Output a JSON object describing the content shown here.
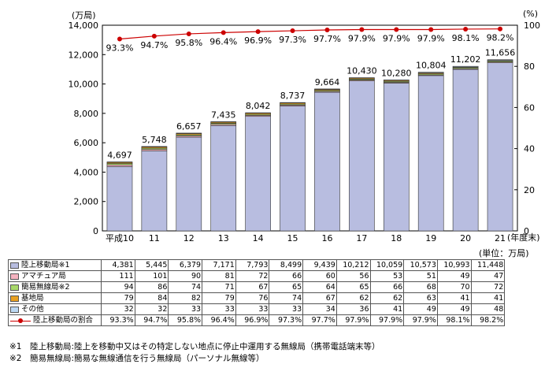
{
  "chart_data": {
    "type": "bar",
    "stacked": true,
    "categories": [
      "平成10",
      "11",
      "12",
      "13",
      "14",
      "15",
      "16",
      "17",
      "18",
      "19",
      "20",
      "21"
    ],
    "x_unit_label": "(年度末)",
    "left_axis": {
      "unit_label": "(万局)",
      "range": [
        0,
        14000
      ],
      "ticks": [
        "0",
        "2,000",
        "4,000",
        "6,000",
        "8,000",
        "10,000",
        "12,000",
        "14,000"
      ]
    },
    "right_axis": {
      "unit_label": "(%)",
      "range": [
        0,
        100
      ],
      "ticks": [
        "0",
        "20",
        "40",
        "60",
        "80",
        "100"
      ]
    },
    "series": [
      {
        "name": "陸上移動局※1",
        "color": "#b8bde0",
        "values": [
          4381,
          5445,
          6379,
          7171,
          7793,
          8499,
          9439,
          10212,
          10059,
          10573,
          10993,
          11448
        ]
      },
      {
        "name": "アマチュア局",
        "color": "#f5b3c0",
        "values": [
          111,
          101,
          90,
          81,
          72,
          66,
          60,
          56,
          53,
          51,
          49,
          47
        ]
      },
      {
        "name": "簡易無線局※2",
        "color": "#a8d86a",
        "values": [
          94,
          86,
          74,
          71,
          67,
          65,
          64,
          65,
          66,
          68,
          70,
          72
        ]
      },
      {
        "name": "基地局",
        "color": "#e8a020",
        "values": [
          79,
          84,
          82,
          79,
          76,
          74,
          67,
          62,
          62,
          63,
          41,
          41
        ]
      },
      {
        "name": "その他",
        "color": "#bcd8f2",
        "values": [
          32,
          32,
          33,
          33,
          33,
          33,
          34,
          36,
          41,
          49,
          49,
          48
        ]
      }
    ],
    "totals": [
      "4,697",
      "5,748",
      "6,657",
      "7,435",
      "8,042",
      "8,737",
      "9,664",
      "10,430",
      "10,280",
      "10,804",
      "11,202",
      "11,656"
    ],
    "line_series": {
      "name": "陸上移動局の割合",
      "color": "#cc0000",
      "axis": "right",
      "values": [
        93.3,
        94.7,
        95.8,
        96.4,
        96.9,
        97.3,
        97.7,
        97.9,
        97.9,
        97.9,
        98.1,
        98.2
      ]
    },
    "line_labels": [
      "93.3%",
      "94.7%",
      "95.8%",
      "96.4%",
      "96.9%",
      "97.3%",
      "97.7%",
      "97.9%",
      "97.9%",
      "97.9%",
      "98.1%",
      "98.2%"
    ]
  },
  "table": {
    "unit_note": "(単位：万局)",
    "rows": [
      {
        "label": "陸上移動局※1",
        "swatch": "#b8bde0",
        "cells": [
          "4,381",
          "5,445",
          "6,379",
          "7,171",
          "7,793",
          "8,499",
          "9,439",
          "10,212",
          "10,059",
          "10,573",
          "10,993",
          "11,448"
        ]
      },
      {
        "label": "アマチュア局",
        "swatch": "#f5b3c0",
        "cells": [
          "111",
          "101",
          "90",
          "81",
          "72",
          "66",
          "60",
          "56",
          "53",
          "51",
          "49",
          "47"
        ]
      },
      {
        "label": "簡易無線局※2",
        "swatch": "#a8d86a",
        "cells": [
          "94",
          "86",
          "74",
          "71",
          "67",
          "65",
          "64",
          "65",
          "66",
          "68",
          "70",
          "72"
        ]
      },
      {
        "label": "基地局",
        "swatch": "#e8a020",
        "cells": [
          "79",
          "84",
          "82",
          "79",
          "76",
          "74",
          "67",
          "62",
          "62",
          "63",
          "41",
          "41"
        ]
      },
      {
        "label": "その他",
        "swatch": "#bcd8f2",
        "cells": [
          "32",
          "32",
          "33",
          "33",
          "33",
          "33",
          "34",
          "36",
          "41",
          "49",
          "49",
          "48"
        ]
      },
      {
        "label": "陸上移動局の割合",
        "swatch": "line",
        "cells": [
          "93.3%",
          "94.7%",
          "95.8%",
          "96.4%",
          "96.9%",
          "97.3%",
          "97.7%",
          "97.9%",
          "97.9%",
          "97.9%",
          "98.1%",
          "98.2%"
        ]
      }
    ]
  },
  "notes": [
    "※1　陸上移動局:陸上を移動中又はその特定しない地点に停止中運用する無線局（携帯電話端末等）",
    "※2　簡易無線局:簡易な無線通信を行う無線局（パーソナル無線等）"
  ]
}
